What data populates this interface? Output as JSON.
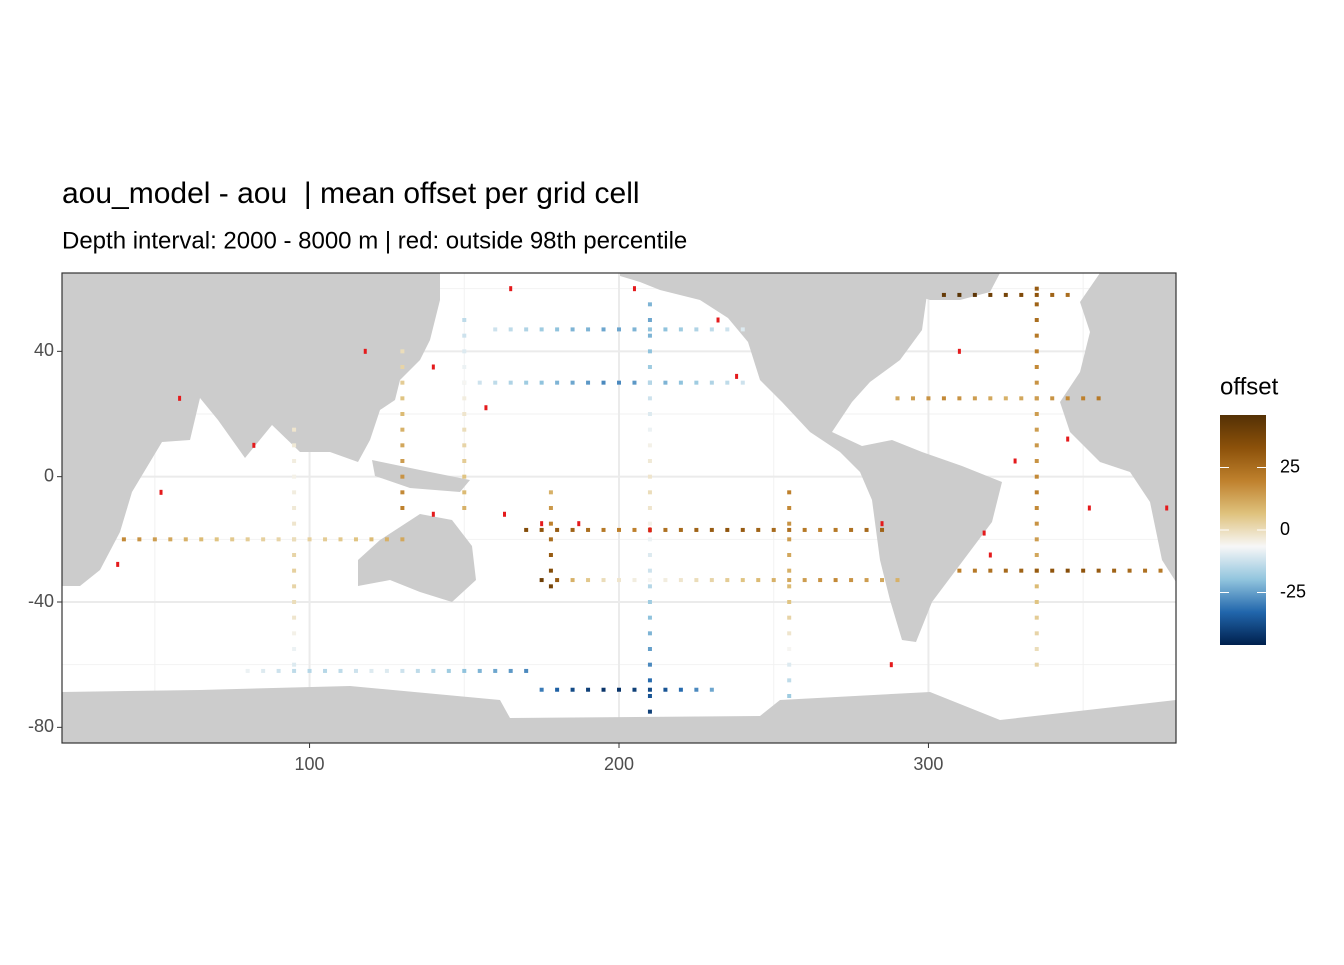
{
  "chart_data": {
    "type": "raster-map",
    "title": "aou_model - aou  | mean offset per grid cell",
    "subtitle": "Depth interval: 2000 - 8000 m | red: outside 98th percentile",
    "xlim": [
      20,
      380
    ],
    "ylim": [
      -85,
      65
    ],
    "xticks": [
      100,
      200,
      300
    ],
    "yticks": [
      -80,
      -40,
      0,
      40
    ],
    "xminor": [
      50,
      150,
      250,
      350
    ],
    "yminor": [
      -60,
      -20,
      20,
      60
    ],
    "grid": true,
    "legend": {
      "title": "offset",
      "limits": [
        -46,
        46
      ],
      "ticks": [
        -25,
        0,
        25
      ],
      "colors": [
        "#00204d",
        "#2166ac",
        "#92c5de",
        "#f7f7f7",
        "#dfc27d",
        "#bf812d",
        "#8c510a",
        "#543005"
      ]
    },
    "outlier_color": "#e41a1c",
    "tracks": [
      {
        "lon": [
          160,
          165,
          170,
          175,
          180,
          185,
          190,
          195,
          200,
          205,
          210,
          215,
          220,
          225,
          230,
          235,
          240
        ],
        "lat": [
          47,
          47,
          47,
          47,
          47,
          47,
          47,
          47,
          47,
          47,
          47,
          47,
          47,
          47,
          47,
          47,
          47
        ],
        "offset": [
          -12,
          -14,
          -16,
          -18,
          -20,
          -22,
          -22,
          -24,
          -24,
          -22,
          -20,
          -20,
          -18,
          -16,
          -14,
          -12,
          -10
        ]
      },
      {
        "lon": [
          150,
          155,
          160,
          165,
          170,
          175,
          180,
          185,
          190,
          195,
          200,
          205,
          210,
          215,
          220,
          225,
          230,
          235,
          240
        ],
        "lat": [
          30,
          30,
          30,
          30,
          30,
          30,
          30,
          30,
          30,
          30,
          30,
          30,
          30,
          30,
          30,
          30,
          30,
          30,
          30
        ],
        "offset": [
          -10,
          -12,
          -14,
          -16,
          -18,
          -20,
          -22,
          -24,
          -26,
          -28,
          -28,
          -26,
          -24,
          -22,
          -20,
          -18,
          -16,
          -14,
          -12
        ]
      },
      {
        "lon": [
          210,
          210,
          210,
          210,
          210,
          210,
          210,
          210,
          210,
          210,
          210,
          210,
          210,
          210,
          210,
          210,
          210,
          210,
          210,
          210,
          210,
          210,
          210,
          210,
          210,
          210,
          210
        ],
        "lat": [
          55,
          50,
          45,
          40,
          35,
          30,
          25,
          20,
          15,
          10,
          5,
          0,
          -5,
          -10,
          -15,
          -20,
          -25,
          -30,
          -35,
          -40,
          -45,
          -50,
          -55,
          -60,
          -65,
          -70,
          -75
        ],
        "offset": [
          -22,
          -24,
          -22,
          -20,
          -18,
          -15,
          -12,
          -10,
          -8,
          -5,
          -3,
          -2,
          0,
          -2,
          -5,
          -8,
          -10,
          -12,
          -15,
          -18,
          -20,
          -22,
          -25,
          -28,
          -32,
          -36,
          -40
        ]
      },
      {
        "lon": [
          175,
          180,
          185,
          190,
          195,
          200,
          205,
          210,
          215,
          220,
          225,
          230
        ],
        "lat": [
          -68,
          -68,
          -68,
          -68,
          -68,
          -68,
          -68,
          -68,
          -68,
          -68,
          -68,
          -68
        ],
        "offset": [
          -30,
          -34,
          -38,
          -40,
          -42,
          -42,
          -40,
          -38,
          -36,
          -32,
          -28,
          -24
        ]
      },
      {
        "lon": [
          170,
          175,
          180,
          185,
          190,
          195,
          200,
          205,
          210,
          215,
          220,
          225,
          230,
          235,
          240,
          245,
          250,
          255,
          260,
          265,
          270,
          275,
          280,
          285
        ],
        "lat": [
          -17,
          -17,
          -17,
          -17,
          -17,
          -17,
          -17,
          -17,
          -17,
          -17,
          -17,
          -17,
          -17,
          -17,
          -17,
          -17,
          -17,
          -17,
          -17,
          -17,
          -17,
          -17,
          -17,
          -17
        ],
        "offset": [
          35,
          32,
          30,
          28,
          25,
          22,
          20,
          20,
          22,
          24,
          26,
          28,
          30,
          32,
          30,
          28,
          26,
          24,
          22,
          20,
          22,
          24,
          26,
          28
        ]
      },
      {
        "lon": [
          175,
          180,
          185,
          190,
          195,
          200,
          205,
          210,
          215,
          220,
          225,
          230,
          235,
          240,
          245,
          250,
          255,
          260,
          265,
          270,
          275,
          280,
          285,
          290
        ],
        "lat": [
          -33,
          -33,
          -33,
          -33,
          -33,
          -33,
          -33,
          -33,
          -33,
          -33,
          -33,
          -33,
          -33,
          -33,
          -33,
          -33,
          -33,
          -33,
          -33,
          -33,
          -33,
          -33,
          -33,
          -33
        ],
        "offset": [
          40,
          30,
          10,
          5,
          0,
          -2,
          -4,
          -6,
          -4,
          -2,
          0,
          2,
          4,
          6,
          8,
          10,
          12,
          14,
          16,
          18,
          16,
          14,
          12,
          10
        ]
      },
      {
        "lon": [
          178,
          178,
          178,
          178,
          178,
          178,
          178
        ],
        "lat": [
          -5,
          -10,
          -15,
          -20,
          -25,
          -30,
          -35
        ],
        "offset": [
          10,
          15,
          20,
          25,
          30,
          35,
          38
        ]
      },
      {
        "lon": [
          335,
          335,
          335,
          335,
          335,
          335,
          335,
          335,
          335,
          335,
          335,
          335,
          335,
          335,
          335,
          335,
          335,
          335,
          335,
          335,
          335,
          335,
          335,
          335,
          335
        ],
        "lat": [
          60,
          55,
          50,
          45,
          40,
          35,
          30,
          25,
          20,
          15,
          10,
          5,
          0,
          -5,
          -10,
          -15,
          -20,
          -25,
          -30,
          -35,
          -40,
          -45,
          -50,
          -55,
          -60
        ],
        "offset": [
          30,
          28,
          25,
          22,
          20,
          18,
          16,
          15,
          14,
          14,
          15,
          16,
          18,
          20,
          18,
          16,
          14,
          12,
          10,
          8,
          6,
          4,
          2,
          0,
          2
        ]
      },
      {
        "lon": [
          305,
          310,
          315,
          320,
          325,
          330,
          335,
          340,
          345
        ],
        "lat": [
          58,
          58,
          58,
          58,
          58,
          58,
          58,
          58,
          58
        ],
        "offset": [
          42,
          45,
          44,
          40,
          38,
          36,
          32,
          28,
          25
        ]
      },
      {
        "lon": [
          310,
          315,
          320,
          325,
          330,
          335,
          340,
          345,
          350,
          355,
          360,
          365,
          370,
          375
        ],
        "lat": [
          -30,
          -30,
          -30,
          -30,
          -30,
          -30,
          -30,
          -30,
          -30,
          -30,
          -30,
          -30,
          -30,
          -30
        ],
        "offset": [
          20,
          22,
          24,
          26,
          28,
          30,
          32,
          34,
          32,
          30,
          28,
          26,
          24,
          22
        ]
      },
      {
        "lon": [
          40,
          45,
          50,
          55,
          60,
          65,
          70,
          75,
          80,
          85,
          90,
          95,
          100,
          105,
          110,
          115,
          120,
          125,
          130
        ],
        "lat": [
          -20,
          -20,
          -20,
          -20,
          -20,
          -20,
          -20,
          -20,
          -20,
          -20,
          -20,
          -20,
          -20,
          -20,
          -20,
          -20,
          -20,
          -20,
          -20
        ],
        "offset": [
          18,
          16,
          14,
          12,
          10,
          8,
          6,
          5,
          4,
          3,
          2,
          2,
          3,
          4,
          5,
          6,
          8,
          10,
          12
        ]
      },
      {
        "lon": [
          95,
          95,
          95,
          95,
          95,
          95,
          95,
          95,
          95,
          95,
          95,
          95,
          95,
          95,
          95,
          95
        ],
        "lat": [
          15,
          10,
          5,
          0,
          -5,
          -10,
          -15,
          -20,
          -25,
          -30,
          -35,
          -40,
          -45,
          -50,
          -55,
          -60
        ],
        "offset": [
          -2,
          -3,
          -4,
          -5,
          -4,
          -3,
          -2,
          0,
          2,
          3,
          2,
          0,
          -2,
          -5,
          -8,
          -10
        ]
      },
      {
        "lon": [
          80,
          85,
          90,
          95,
          100,
          105,
          110,
          115,
          120,
          125,
          130,
          135,
          140,
          145,
          150,
          155,
          160,
          165,
          170
        ],
        "lat": [
          -62,
          -62,
          -62,
          -62,
          -62,
          -62,
          -62,
          -62,
          -62,
          -62,
          -62,
          -62,
          -62,
          -62,
          -62,
          -62,
          -62,
          -62,
          -62
        ],
        "offset": [
          -8,
          -10,
          -12,
          -14,
          -15,
          -15,
          -14,
          -12,
          -10,
          -10,
          -12,
          -14,
          -16,
          -18,
          -20,
          -22,
          -24,
          -26,
          -28
        ]
      },
      {
        "lon": [
          150,
          150,
          150,
          150,
          150,
          150,
          150,
          150,
          150,
          150,
          150,
          150,
          150
        ],
        "lat": [
          50,
          45,
          40,
          35,
          30,
          25,
          20,
          15,
          10,
          5,
          0,
          -5,
          -10
        ],
        "offset": [
          -14,
          -12,
          -10,
          -8,
          -6,
          -4,
          -2,
          0,
          2,
          4,
          6,
          8,
          10
        ]
      },
      {
        "lon": [
          290,
          295,
          300,
          305,
          310,
          315,
          320,
          325,
          330,
          335,
          340,
          345,
          350,
          355
        ],
        "lat": [
          25,
          25,
          25,
          25,
          25,
          25,
          25,
          25,
          25,
          25,
          25,
          25,
          25,
          25
        ],
        "offset": [
          12,
          14,
          16,
          18,
          16,
          14,
          12,
          10,
          12,
          14,
          16,
          18,
          20,
          22
        ]
      },
      {
        "lon": [
          255,
          255,
          255,
          255,
          255,
          255,
          255,
          255,
          255,
          255,
          255,
          255,
          255,
          255
        ],
        "lat": [
          -5,
          -10,
          -15,
          -20,
          -25,
          -30,
          -35,
          -40,
          -45,
          -50,
          -55,
          -60,
          -65,
          -70
        ],
        "offset": [
          20,
          18,
          16,
          14,
          12,
          10,
          8,
          6,
          2,
          -2,
          -6,
          -10,
          -14,
          -18
        ]
      },
      {
        "lon": [
          130,
          130,
          130,
          130,
          130,
          130,
          130,
          130,
          130,
          130,
          130
        ],
        "lat": [
          40,
          35,
          30,
          25,
          20,
          15,
          10,
          5,
          0,
          -5,
          -10
        ],
        "offset": [
          0,
          2,
          4,
          6,
          8,
          10,
          12,
          14,
          16,
          18,
          20
        ]
      }
    ],
    "outliers": {
      "lon": [
        58,
        82,
        52,
        38,
        157,
        163,
        175,
        187,
        210,
        232,
        238,
        165,
        118,
        140,
        285,
        318,
        320,
        310,
        328,
        345,
        352,
        377,
        288,
        140,
        205
      ],
      "lat": [
        25,
        10,
        -5,
        -28,
        22,
        -12,
        -15,
        -15,
        -17,
        50,
        32,
        60,
        40,
        35,
        -15,
        -18,
        -25,
        40,
        5,
        12,
        -10,
        -10,
        -60,
        -12,
        60
      ]
    }
  }
}
